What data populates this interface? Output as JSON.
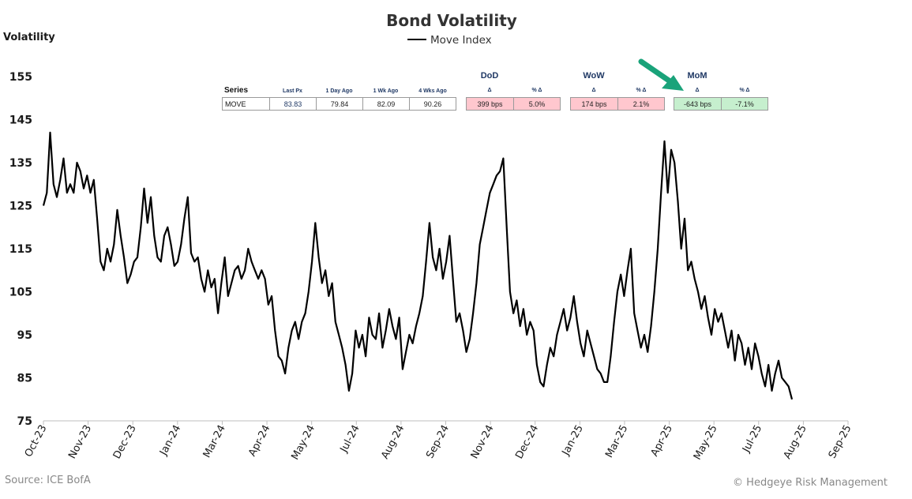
{
  "chart_data": {
    "type": "line",
    "title": "Bond Volatility",
    "ylabel": "Volatility",
    "legend": "top-center",
    "ylim": [
      75,
      155
    ],
    "yticks": [
      75,
      85,
      95,
      105,
      115,
      125,
      135,
      145,
      155
    ],
    "xticks": [
      "Oct-23",
      "Nov-23",
      "Dec-23",
      "Jan-24",
      "Mar-24",
      "Apr-24",
      "May-24",
      "Jul-24",
      "Aug-24",
      "Sep-24",
      "Nov-24",
      "Dec-24",
      "Jan-25",
      "Mar-25",
      "Apr-25",
      "May-25",
      "Jul-25",
      "Aug-25",
      "Sep-25"
    ],
    "series": [
      {
        "name": "Move Index",
        "color": "#000000",
        "values": [
          125,
          128,
          142,
          130,
          127,
          131,
          136,
          128,
          130,
          128,
          135,
          133,
          129,
          132,
          128,
          131,
          122,
          112,
          110,
          115,
          112,
          116,
          124,
          118,
          113,
          107,
          109,
          112,
          113,
          120,
          129,
          121,
          127,
          118,
          113,
          112,
          118,
          120,
          116,
          111,
          112,
          116,
          122,
          127,
          114,
          112,
          113,
          108,
          105,
          110,
          106,
          108,
          100,
          107,
          113,
          104,
          107,
          110,
          111,
          108,
          110,
          115,
          112,
          110,
          108,
          110,
          108,
          102,
          104,
          96,
          90,
          89,
          86,
          92,
          96,
          98,
          94,
          98,
          100,
          105,
          112,
          121,
          113,
          107,
          110,
          104,
          107,
          98,
          95,
          92,
          88,
          82,
          86,
          96,
          92,
          95,
          90,
          99,
          95,
          94,
          100,
          92,
          96,
          101,
          97,
          94,
          99,
          87,
          91,
          95,
          93,
          97,
          100,
          104,
          112,
          121,
          113,
          110,
          115,
          108,
          112,
          118,
          108,
          98,
          100,
          96,
          91,
          94,
          100,
          107,
          116,
          120,
          124,
          128,
          130,
          132,
          133,
          136,
          120,
          105,
          100,
          103,
          97,
          101,
          95,
          98,
          96,
          88,
          84,
          83,
          88,
          92,
          90,
          95,
          98,
          101,
          96,
          99,
          104,
          98,
          93,
          90,
          96,
          93,
          90,
          87,
          86,
          84,
          84,
          90,
          98,
          105,
          109,
          104,
          110,
          115,
          100,
          96,
          92,
          95,
          91,
          97,
          105,
          115,
          128,
          140,
          128,
          138,
          135,
          126,
          115,
          122,
          110,
          112,
          108,
          105,
          101,
          104,
          99,
          95,
          101,
          98,
          100,
          96,
          92,
          96,
          89,
          95,
          93,
          88,
          92,
          87,
          93,
          90,
          86,
          83,
          88,
          82,
          86,
          89,
          85,
          84,
          83,
          80
        ]
      }
    ],
    "stats_table": {
      "series_header": "Series",
      "group_headers": [
        "DoD",
        "WoW",
        "MoM"
      ],
      "columns": [
        "Last Px",
        "1 Day Ago",
        "1 Wk Ago",
        "4 Wks Ago"
      ],
      "delta_header": "Δ",
      "pct_header": "% Δ",
      "row": {
        "name": "MOVE",
        "last": "83.83",
        "day_ago": "79.84",
        "wk_ago": "82.09",
        "wks4_ago": "90.26",
        "dod_delta": "399 bps",
        "dod_pct": "5.0%",
        "wow_delta": "174 bps",
        "wow_pct": "2.1%",
        "mom_delta": "-643 bps",
        "mom_pct": "-7.1%"
      },
      "colors": {
        "up": "#ffc7ce",
        "down": "#c6efce",
        "arrow": "#1aa37a"
      }
    }
  },
  "footer": {
    "source": "Source: ICE BofA",
    "copyright": "© Hedgeye Risk Management"
  }
}
